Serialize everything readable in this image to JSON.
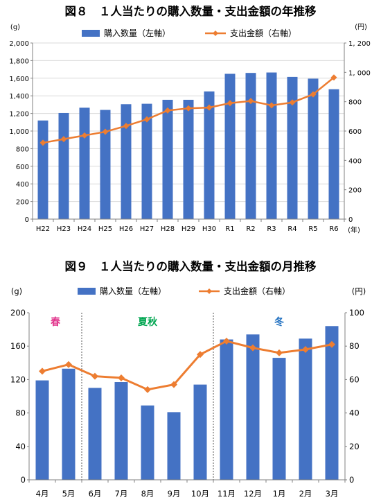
{
  "colors": {
    "bar": "#4472C4",
    "line": "#ED7D31",
    "grid": "#D9D9D9",
    "axis": "#808080",
    "spring": "#E0318A",
    "summer_autumn": "#00A651",
    "winter": "#1F6FC0"
  },
  "chart_data": [
    {
      "type": "bar+line",
      "title": "図８　１人当たりの購入数量・支出金額の年推移",
      "left_unit": "(g)",
      "right_unit": "(円)",
      "x_unit": "(年)",
      "categories": [
        "H22",
        "H23",
        "H24",
        "H25",
        "H26",
        "H27",
        "H28",
        "H29",
        "H30",
        "R1",
        "R2",
        "R3",
        "R4",
        "R5",
        "R6"
      ],
      "series": [
        {
          "name": "購入数量（左軸）",
          "type": "bar",
          "axis": "left",
          "values": [
            1120,
            1205,
            1265,
            1240,
            1305,
            1310,
            1355,
            1355,
            1450,
            1650,
            1660,
            1665,
            1615,
            1595,
            1475
          ]
        },
        {
          "name": "支出金額（右軸）",
          "type": "line",
          "axis": "right",
          "values": [
            520,
            545,
            570,
            595,
            635,
            680,
            740,
            755,
            760,
            790,
            805,
            775,
            795,
            850,
            965
          ]
        }
      ],
      "left_ylim": [
        0,
        2000
      ],
      "left_ticks": [
        0,
        200,
        400,
        600,
        800,
        1000,
        1200,
        1400,
        1600,
        1800,
        2000
      ],
      "left_tick_labels": [
        "0",
        "200",
        "400",
        "600",
        "800",
        "1,000",
        "1,200",
        "1,400",
        "1,600",
        "1,800",
        "2,000"
      ],
      "right_ylim": [
        0,
        1200
      ],
      "right_ticks": [
        0,
        200,
        400,
        600,
        800,
        1000,
        1200
      ],
      "right_tick_labels": [
        "0",
        "200",
        "400",
        "600",
        "800",
        "1, 000",
        "1, 200"
      ],
      "grid": true,
      "legend_position": "top"
    },
    {
      "type": "bar+line",
      "title": "図９　１人当たりの購入数量・支出金額の月推移",
      "left_unit": "(g)",
      "right_unit": "(円)",
      "categories": [
        "4月",
        "5月",
        "6月",
        "7月",
        "8月",
        "9月",
        "10月",
        "11月",
        "12月",
        "1月",
        "2月",
        "3月"
      ],
      "series": [
        {
          "name": "購入数量（左軸）",
          "type": "bar",
          "axis": "left",
          "values": [
            119,
            133,
            110,
            117,
            89,
            81,
            114,
            168,
            174,
            146,
            169,
            184
          ]
        },
        {
          "name": "支出金額（右軸）",
          "type": "line",
          "axis": "right",
          "values": [
            65,
            69,
            62,
            61,
            54,
            57,
            75,
            83,
            79,
            76,
            78,
            81
          ]
        }
      ],
      "left_ylim": [
        0,
        200
      ],
      "left_ticks": [
        0,
        40,
        80,
        120,
        160,
        200
      ],
      "left_tick_labels": [
        "0",
        "40",
        "80",
        "120",
        "160",
        "200"
      ],
      "right_ylim": [
        0,
        100
      ],
      "right_ticks": [
        0,
        20,
        40,
        60,
        80,
        100
      ],
      "right_tick_labels": [
        "0",
        "20",
        "40",
        "60",
        "80",
        "100"
      ],
      "grid": false,
      "legend_position": "top",
      "seasons": [
        {
          "label": "春",
          "color_key": "spring"
        },
        {
          "label": "夏秋",
          "color_key": "summer_autumn"
        },
        {
          "label": "冬",
          "color_key": "winter"
        }
      ],
      "season_dividers_after_index": [
        1,
        6
      ]
    }
  ]
}
